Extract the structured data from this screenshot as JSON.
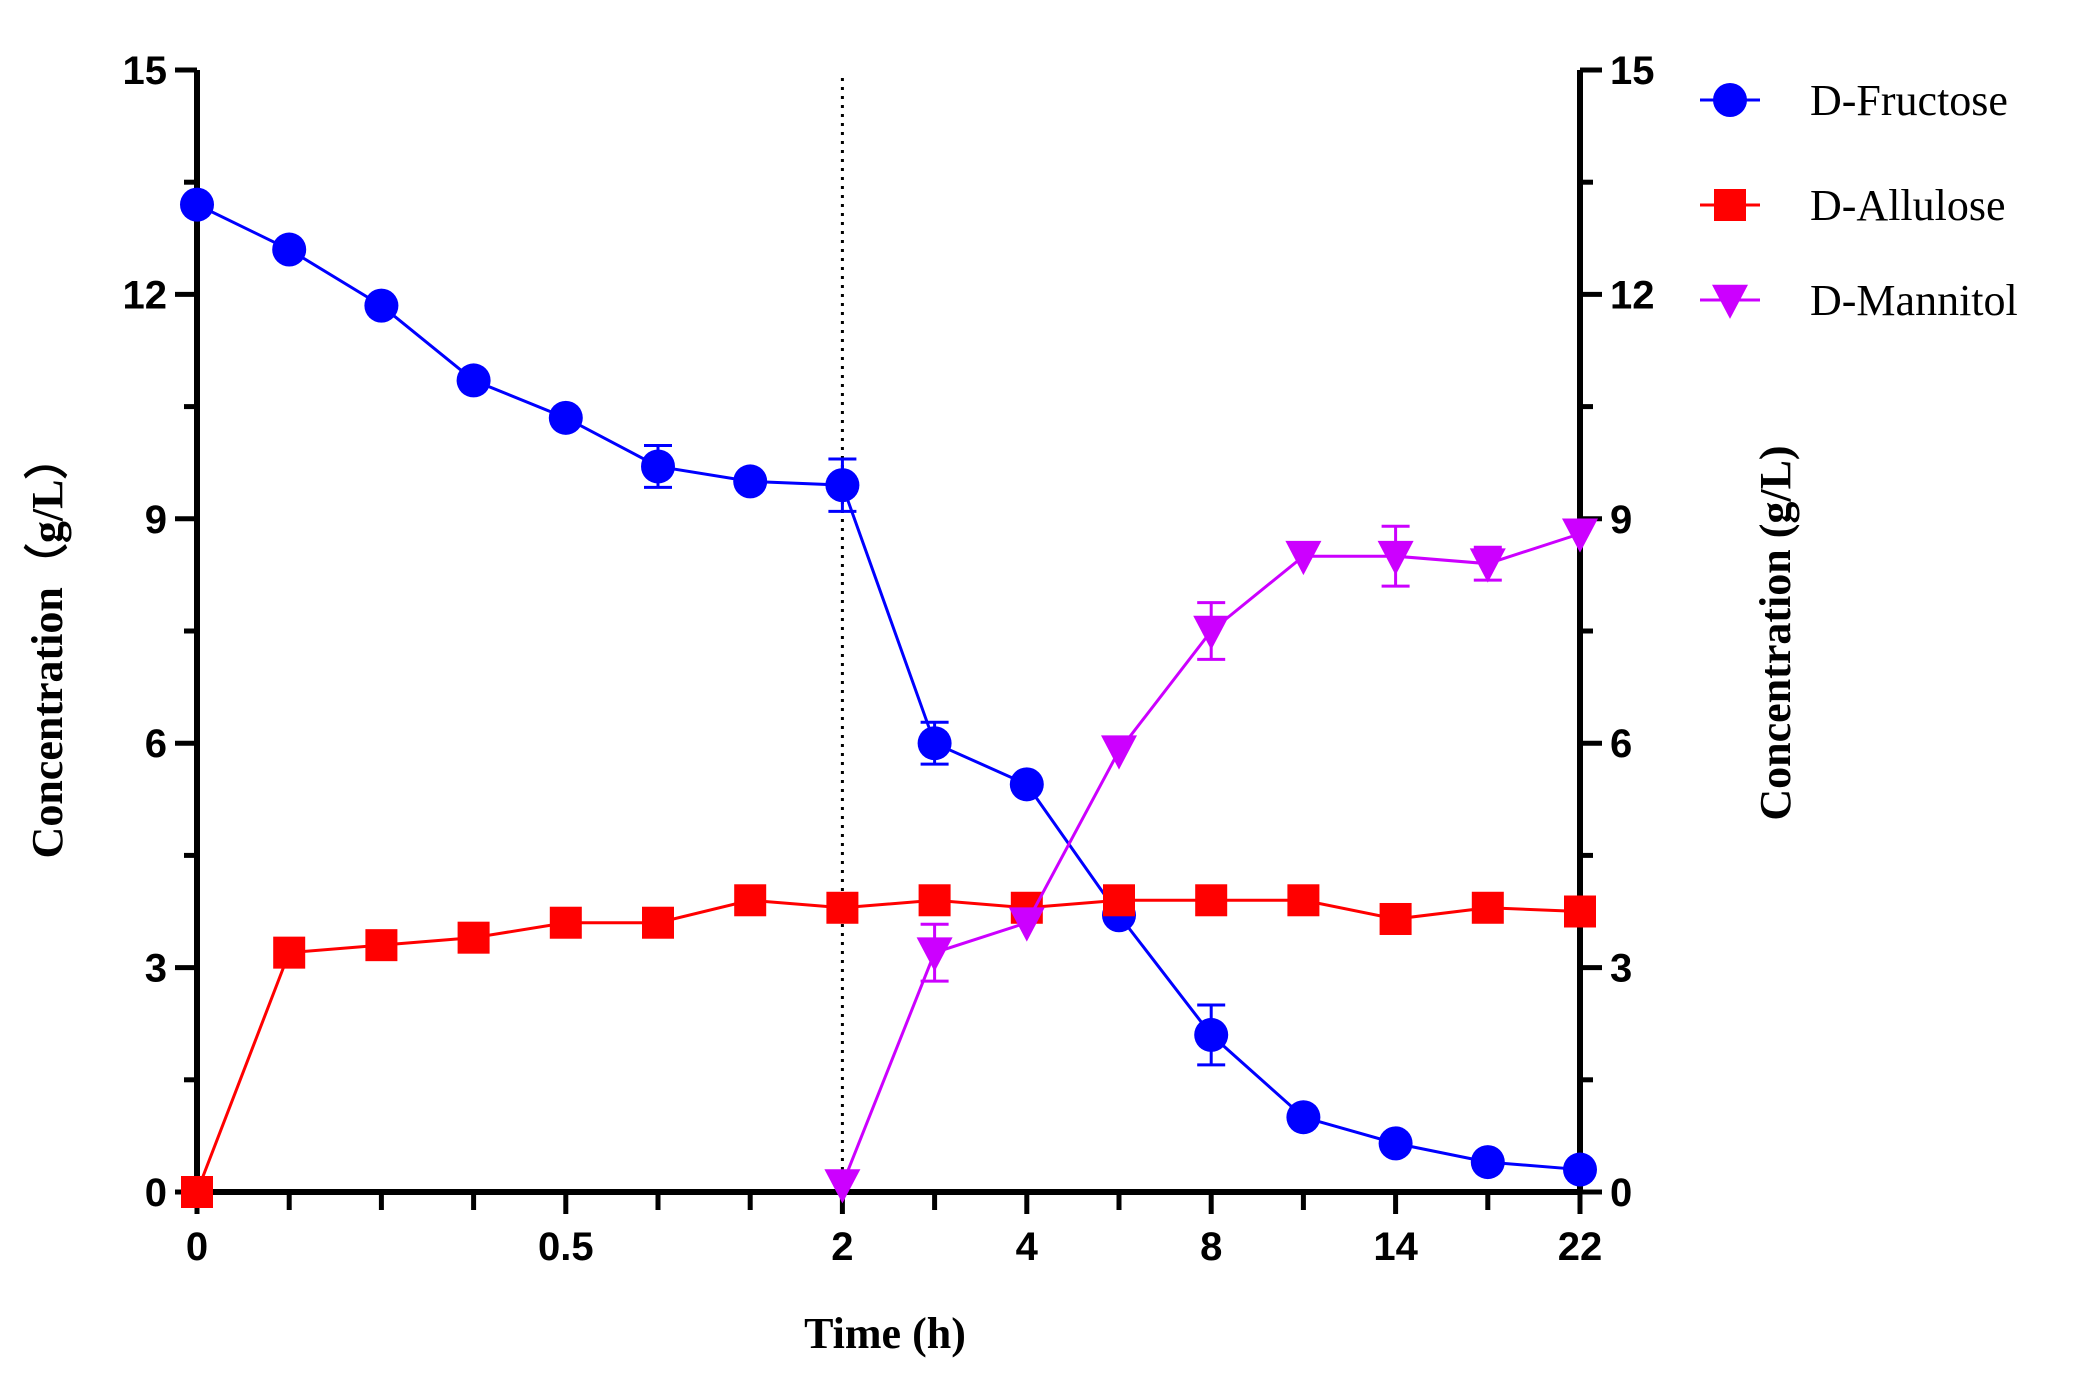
{
  "chart_data": {
    "type": "line",
    "title": "",
    "xlabel": "Time (h)",
    "ylabel_left": "Concentration（g/L）",
    "ylabel_right": "Concentration (g/L)",
    "ylim": [
      0,
      15
    ],
    "yticks": [
      0,
      3,
      6,
      9,
      12,
      15
    ],
    "ytick_labels": [
      "0",
      "3",
      "6",
      "9",
      "12",
      "15"
    ],
    "x_positions": 16,
    "xtick_labels": [
      {
        "index": 0,
        "label": "0"
      },
      {
        "index": 4,
        "label": "0.5"
      },
      {
        "index": 7,
        "label": "2"
      },
      {
        "index": 9,
        "label": "4"
      },
      {
        "index": 11,
        "label": "8"
      },
      {
        "index": 13,
        "label": "14"
      },
      {
        "index": 15,
        "label": "22"
      }
    ],
    "vertical_marker": {
      "index": 7,
      "style": "dotted",
      "label": ""
    },
    "legend_position": "top-right",
    "series": [
      {
        "name": "D-Fructose",
        "color": "#0000ff",
        "marker": "circle",
        "start_index": 0,
        "values": [
          13.2,
          12.6,
          11.85,
          10.85,
          10.35,
          9.7,
          9.5,
          9.45,
          6.0,
          5.45,
          3.7,
          2.1,
          1.0,
          0.65,
          0.4,
          0.3
        ],
        "errors": [
          0,
          0,
          0,
          0,
          0,
          0.28,
          0,
          0.35,
          0.28,
          0,
          0,
          0.4,
          0,
          0,
          0,
          0
        ]
      },
      {
        "name": "D-Allulose",
        "color": "#ff0000",
        "marker": "square",
        "start_index": 0,
        "values": [
          0.0,
          3.2,
          3.3,
          3.4,
          3.6,
          3.6,
          3.9,
          3.8,
          3.9,
          3.8,
          3.9,
          3.9,
          3.9,
          3.65,
          3.8,
          3.75
        ],
        "errors": [
          0,
          0,
          0,
          0,
          0,
          0,
          0,
          0,
          0,
          0,
          0,
          0,
          0,
          0,
          0,
          0
        ]
      },
      {
        "name": "D-Mannitol",
        "color": "#cc00ff",
        "marker": "triangle-down",
        "start_index": 7,
        "values": [
          0.1,
          3.2,
          3.6,
          5.9,
          7.5,
          8.5,
          8.5,
          8.4,
          8.8
        ],
        "errors": [
          0,
          0.38,
          0,
          0,
          0.38,
          0,
          0.4,
          0.22,
          0
        ]
      }
    ]
  }
}
